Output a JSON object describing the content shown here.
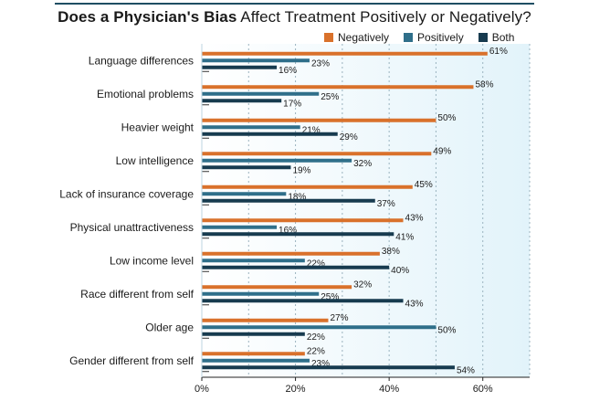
{
  "chart_data": {
    "type": "bar",
    "orientation": "horizontal",
    "title_bold": "Does a Physician's Bias",
    "title_rest": " Affect Treatment Positively or Negatively?",
    "categories": [
      "Language differences",
      "Emotional problems",
      "Heavier weight",
      "Low intelligence",
      "Lack of insurance coverage",
      "Physical unattractiveness",
      "Low income level",
      "Race different from self",
      "Older age",
      "Gender different from self"
    ],
    "series": [
      {
        "name": "Negatively",
        "color": "#d9712b",
        "values": [
          61,
          58,
          50,
          49,
          45,
          43,
          38,
          32,
          27,
          22
        ]
      },
      {
        "name": "Positively",
        "color": "#2f6f8a",
        "values": [
          23,
          25,
          21,
          32,
          18,
          16,
          22,
          25,
          50,
          23
        ]
      },
      {
        "name": "Both",
        "color": "#173b4f",
        "values": [
          16,
          17,
          29,
          19,
          37,
          41,
          40,
          43,
          22,
          54
        ]
      }
    ],
    "value_suffix": "%",
    "xlim": [
      0,
      70
    ],
    "xticks": [
      0,
      20,
      40,
      60
    ],
    "xtick_labels": [
      "0%",
      "20%",
      "40%",
      "60%"
    ],
    "legend_position": "top-right",
    "grid": true
  }
}
